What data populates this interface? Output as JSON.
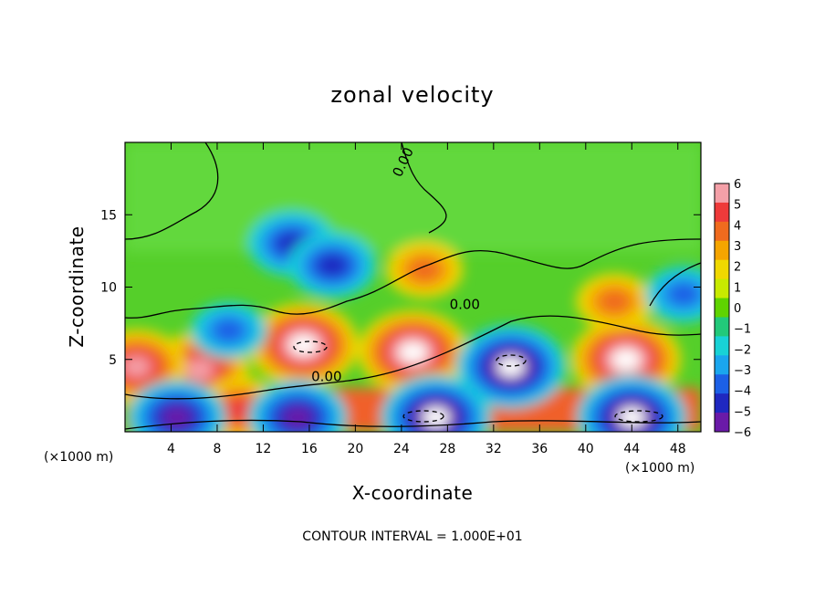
{
  "chart_data": {
    "type": "heatmap",
    "title": "zonal velocity",
    "xlabel": "X-coordinate",
    "ylabel": "Z-coordinate",
    "x_unit_label_left": "(×1000 m)",
    "x_unit_label_right": "(×1000 m)",
    "footer": "CONTOUR INTERVAL = 1.000E+01",
    "xlim": [
      0,
      50
    ],
    "ylim": [
      0,
      20
    ],
    "x_ticks": [
      4,
      8,
      12,
      16,
      20,
      24,
      28,
      32,
      36,
      40,
      44,
      48
    ],
    "x_tick_labels": [
      "4",
      "8",
      "12",
      "16",
      "20",
      "24",
      "28",
      "32",
      "36",
      "40",
      "44",
      "48"
    ],
    "y_ticks": [
      5,
      10,
      15
    ],
    "y_tick_labels": [
      "5",
      "10",
      "15"
    ],
    "colorbar": {
      "min": -6,
      "max": 6,
      "ticks": [
        6,
        5,
        4,
        3,
        2,
        1,
        0,
        -1,
        -2,
        -3,
        -4,
        -5,
        -6
      ],
      "tick_labels": [
        "6",
        "5",
        "4",
        "3",
        "2",
        "1",
        "0",
        "−1",
        "−2",
        "−3",
        "−4",
        "−5",
        "−6"
      ],
      "colors": [
        "#f4a0a8",
        "#ee3a3a",
        "#f06b1e",
        "#f5a500",
        "#f0d800",
        "#c8ea00",
        "#5fd400",
        "#22c97a",
        "#18d2d6",
        "#1aa6ee",
        "#1c60e6",
        "#1f28c0",
        "#6a1aa8"
      ]
    },
    "contour_labels": [
      {
        "text": "0.00",
        "x": 29.5,
        "y": 8.5
      },
      {
        "text": "0.00",
        "x": 17.5,
        "y": 3.5
      },
      {
        "text": "0.00",
        "x": 24.5,
        "y": 18.5
      }
    ],
    "features": [
      {
        "kind": "hot",
        "x": 15.5,
        "y": 6.0,
        "value": 10
      },
      {
        "kind": "hot",
        "x": 25.0,
        "y": 5.5,
        "value": 10
      },
      {
        "kind": "hot",
        "x": 43.5,
        "y": 5.0,
        "value": 10
      },
      {
        "kind": "hot",
        "x": 6.5,
        "y": 4.3,
        "value": 8
      },
      {
        "kind": "hot",
        "x": 1.0,
        "y": 4.5,
        "value": 8
      },
      {
        "kind": "hot",
        "x": 26.0,
        "y": 11.2,
        "value": 3
      },
      {
        "kind": "hot",
        "x": 42.5,
        "y": 9.0,
        "value": 3
      },
      {
        "kind": "hot",
        "x": 10.0,
        "y": 1.5,
        "value": 4
      },
      {
        "kind": "hot",
        "x": 27.0,
        "y": 1.8,
        "value": 4
      },
      {
        "kind": "cold",
        "x": 33.5,
        "y": 4.5,
        "value": -10
      },
      {
        "kind": "cold",
        "x": 27.0,
        "y": 1.0,
        "value": -10
      },
      {
        "kind": "cold",
        "x": 44.0,
        "y": 1.0,
        "value": -10
      },
      {
        "kind": "cold",
        "x": 15.0,
        "y": 1.0,
        "value": -8
      },
      {
        "kind": "cold",
        "x": 4.5,
        "y": 1.0,
        "value": -8
      },
      {
        "kind": "cold",
        "x": 14.5,
        "y": 13.0,
        "value": -4
      },
      {
        "kind": "cold",
        "x": 18.0,
        "y": 11.5,
        "value": -4
      },
      {
        "kind": "cold",
        "x": 9.0,
        "y": 7.0,
        "value": -3
      },
      {
        "kind": "cold",
        "x": 48.5,
        "y": 9.5,
        "value": -3
      }
    ]
  }
}
